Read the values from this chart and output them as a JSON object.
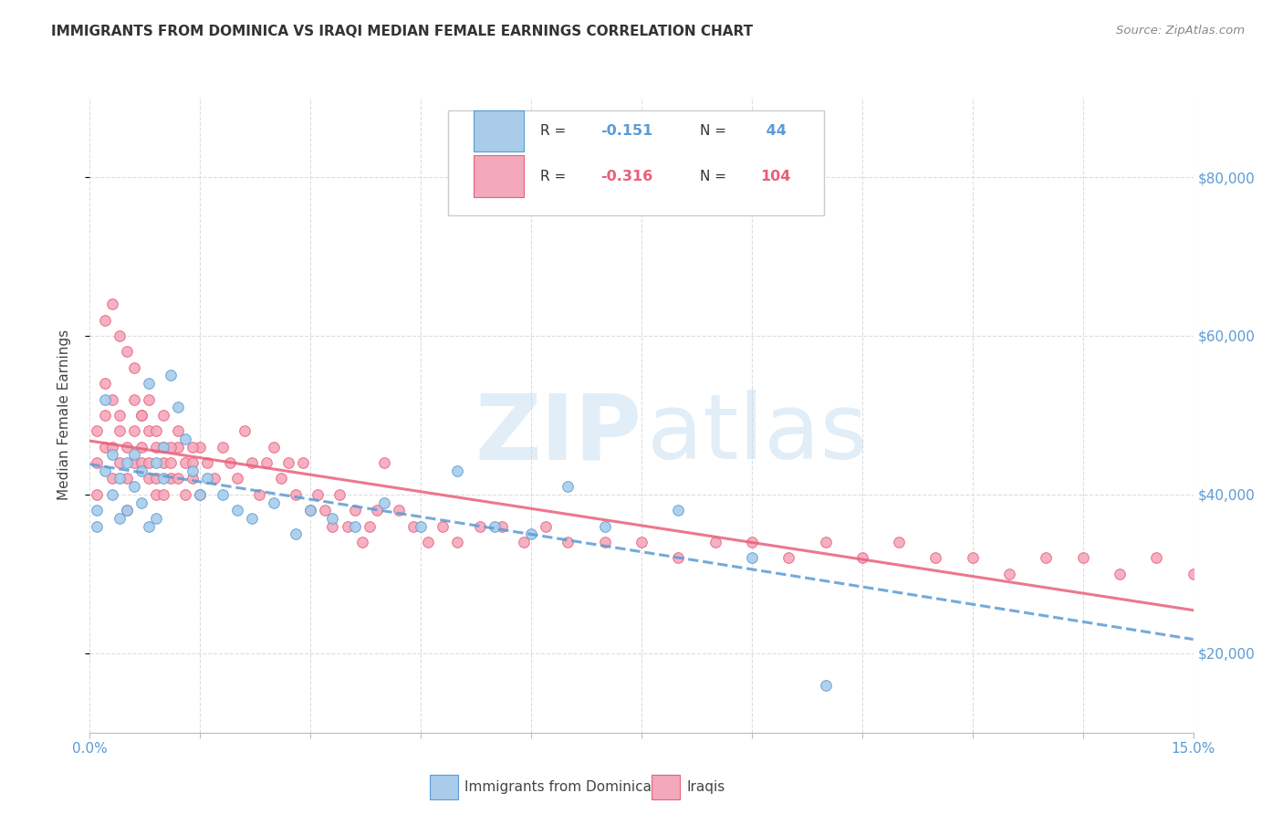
{
  "title": "IMMIGRANTS FROM DOMINICA VS IRAQI MEDIAN FEMALE EARNINGS CORRELATION CHART",
  "source": "Source: ZipAtlas.com",
  "ylabel": "Median Female Earnings",
  "xlim": [
    0.0,
    0.15
  ],
  "ylim": [
    10000,
    90000
  ],
  "yticks": [
    20000,
    40000,
    60000,
    80000
  ],
  "ytick_labels": [
    "$20,000",
    "$40,000",
    "$60,000",
    "$80,000"
  ],
  "xticks": [
    0.0,
    0.015,
    0.03,
    0.045,
    0.06,
    0.075,
    0.09,
    0.105,
    0.12,
    0.135,
    0.15
  ],
  "xtick_labels": [
    "0.0%",
    "",
    "",
    "",
    "",
    "",
    "",
    "",
    "",
    "",
    "15.0%"
  ],
  "color_dominica": "#A8CCEA",
  "color_iraqi": "#F4A8BB",
  "line_dominica": "#5B9BD5",
  "line_iraqi": "#E8607A",
  "background_color": "#FFFFFF",
  "dominica_x": [
    0.001,
    0.001,
    0.002,
    0.002,
    0.003,
    0.003,
    0.004,
    0.004,
    0.005,
    0.005,
    0.006,
    0.006,
    0.007,
    0.007,
    0.008,
    0.008,
    0.009,
    0.009,
    0.01,
    0.01,
    0.011,
    0.012,
    0.013,
    0.014,
    0.015,
    0.016,
    0.018,
    0.02,
    0.022,
    0.025,
    0.028,
    0.03,
    0.033,
    0.036,
    0.04,
    0.045,
    0.05,
    0.055,
    0.06,
    0.065,
    0.07,
    0.08,
    0.09,
    0.1
  ],
  "dominica_y": [
    38000,
    36000,
    52000,
    43000,
    45000,
    40000,
    42000,
    37000,
    44000,
    38000,
    41000,
    45000,
    43000,
    39000,
    54000,
    36000,
    37000,
    44000,
    42000,
    46000,
    55000,
    51000,
    47000,
    43000,
    40000,
    42000,
    40000,
    38000,
    37000,
    39000,
    35000,
    38000,
    37000,
    36000,
    39000,
    36000,
    43000,
    36000,
    35000,
    41000,
    36000,
    38000,
    32000,
    16000
  ],
  "iraqi_x": [
    0.001,
    0.001,
    0.001,
    0.002,
    0.002,
    0.002,
    0.003,
    0.003,
    0.003,
    0.004,
    0.004,
    0.004,
    0.005,
    0.005,
    0.005,
    0.006,
    0.006,
    0.006,
    0.007,
    0.007,
    0.007,
    0.008,
    0.008,
    0.008,
    0.009,
    0.009,
    0.009,
    0.01,
    0.01,
    0.01,
    0.011,
    0.011,
    0.012,
    0.012,
    0.013,
    0.013,
    0.014,
    0.014,
    0.015,
    0.015,
    0.016,
    0.017,
    0.018,
    0.019,
    0.02,
    0.021,
    0.022,
    0.023,
    0.024,
    0.025,
    0.026,
    0.027,
    0.028,
    0.029,
    0.03,
    0.031,
    0.032,
    0.033,
    0.034,
    0.035,
    0.036,
    0.037,
    0.038,
    0.039,
    0.04,
    0.042,
    0.044,
    0.046,
    0.048,
    0.05,
    0.053,
    0.056,
    0.059,
    0.062,
    0.065,
    0.07,
    0.075,
    0.08,
    0.085,
    0.09,
    0.095,
    0.1,
    0.105,
    0.11,
    0.115,
    0.12,
    0.125,
    0.13,
    0.135,
    0.14,
    0.145,
    0.15,
    0.002,
    0.003,
    0.004,
    0.005,
    0.006,
    0.007,
    0.008,
    0.009,
    0.01,
    0.011,
    0.012,
    0.014
  ],
  "iraqi_y": [
    44000,
    48000,
    40000,
    50000,
    46000,
    54000,
    52000,
    46000,
    42000,
    48000,
    44000,
    50000,
    46000,
    42000,
    38000,
    48000,
    44000,
    52000,
    50000,
    44000,
    46000,
    48000,
    44000,
    42000,
    46000,
    42000,
    40000,
    46000,
    44000,
    40000,
    44000,
    42000,
    46000,
    42000,
    44000,
    40000,
    44000,
    42000,
    46000,
    40000,
    44000,
    42000,
    46000,
    44000,
    42000,
    48000,
    44000,
    40000,
    44000,
    46000,
    42000,
    44000,
    40000,
    44000,
    38000,
    40000,
    38000,
    36000,
    40000,
    36000,
    38000,
    34000,
    36000,
    38000,
    44000,
    38000,
    36000,
    34000,
    36000,
    34000,
    36000,
    36000,
    34000,
    36000,
    34000,
    34000,
    34000,
    32000,
    34000,
    34000,
    32000,
    34000,
    32000,
    34000,
    32000,
    32000,
    30000,
    32000,
    32000,
    30000,
    32000,
    30000,
    62000,
    64000,
    60000,
    58000,
    56000,
    50000,
    52000,
    48000,
    50000,
    46000,
    48000,
    46000
  ]
}
